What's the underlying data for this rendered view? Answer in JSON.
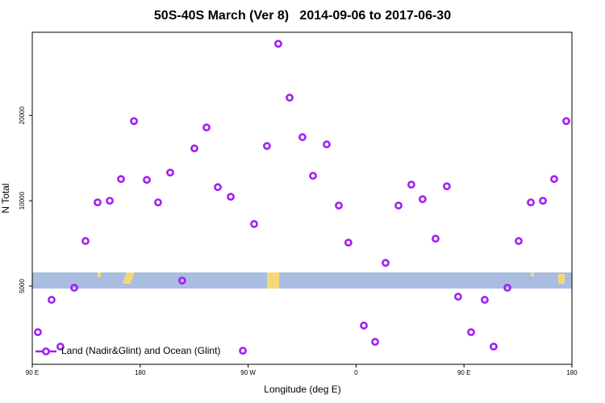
{
  "chart_data": {
    "type": "scatter",
    "title": "50S-40S March (Ver 8)   2014-09-06 to 2017-06-30",
    "xlabel": "Longitude (deg E)",
    "ylabel": "N Total",
    "log_y": true,
    "legend": "bottom left",
    "series": [
      {
        "name": "Land (Nadir&Glint) and Ocean (Glint)",
        "color": "#a020f0",
        "x": [
          94.7,
          106.1,
          113.5,
          125,
          134.4,
          144.5,
          154.6,
          164,
          174.8,
          185.5,
          194.9,
          205,
          215,
          225.2,
          235.3,
          244.7,
          255.5,
          265.6,
          275,
          285.7,
          295.1,
          304.6,
          315.3,
          324.1,
          335.5,
          345.6,
          353.6,
          366.5,
          375.9,
          384.6,
          395.4,
          406.1,
          415.5,
          426.3,
          435.7,
          445.1,
          455.9,
          467.3,
          474.7,
          486.2,
          495.6,
          505.7,
          515.8,
          525.2,
          535.3
        ],
        "values": [
          3440,
          4475,
          3060,
          4935,
          7210,
          9870,
          10000,
          11930,
          19100,
          11850,
          9870,
          12570,
          5230,
          15300,
          18140,
          11170,
          10330,
          2960,
          8280,
          15600,
          35800,
          23100,
          16760,
          12250,
          15810,
          9620,
          7120,
          3630,
          3180,
          6040,
          9620,
          11400,
          10130,
          7350,
          11250,
          4590,
          3440,
          4475,
          3060,
          4935,
          7210,
          9870,
          10000,
          11930,
          19100
        ]
      }
    ],
    "xlim": [
      90,
      540
    ],
    "xticks": [
      {
        "value": 90,
        "label": "90 E"
      },
      {
        "value": 180,
        "label": "180"
      },
      {
        "value": 270,
        "label": "90 W"
      },
      {
        "value": 360,
        "label": "0"
      },
      {
        "value": 450,
        "label": "90 E"
      },
      {
        "value": 540,
        "label": "180"
      }
    ],
    "ylim": [
      2650,
      39300
    ],
    "yticks": [
      5000,
      10000,
      20000
    ]
  }
}
